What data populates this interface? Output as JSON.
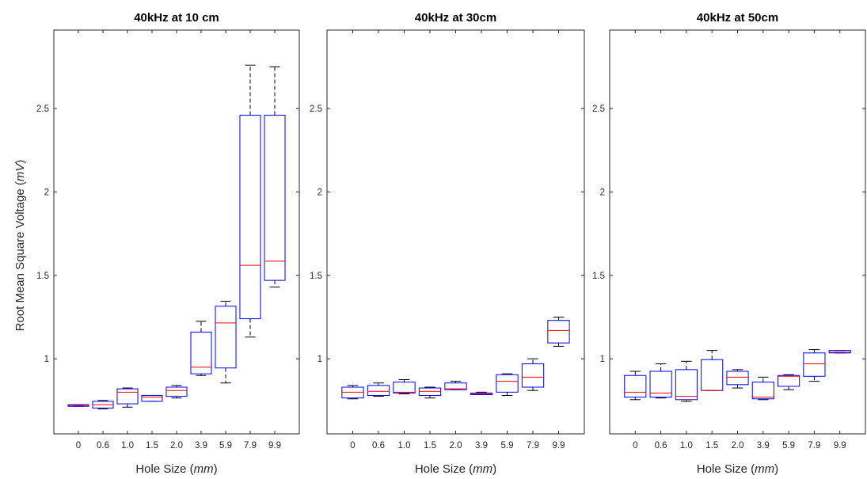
{
  "chart_data": [
    {
      "type": "box",
      "title": "40kHz at 10 cm",
      "xlabel": "Hole Size (mm)",
      "xlabel_prefix": "Hole Size (",
      "xlabel_unit": "mm",
      "xlabel_suffix": ")",
      "ylabel": "Root Mean Square Voltage (mV)",
      "ylabel_prefix": "Root Mean Square Voltage (",
      "ylabel_unit": "mV",
      "ylabel_suffix": ")",
      "ylim": [
        0.55,
        2.97
      ],
      "yticks": [
        "1",
        "1.5",
        "2",
        "2.5"
      ],
      "categories": [
        "0",
        "0.6",
        "1.0",
        "1.5",
        "2.0",
        "3.9",
        "5.9",
        "7.9",
        "9.9"
      ],
      "boxes": [
        {
          "min": 0.715,
          "q1": 0.715,
          "median": 0.72,
          "q3": 0.725,
          "max": 0.725
        },
        {
          "min": 0.7,
          "q1": 0.705,
          "median": 0.725,
          "q3": 0.745,
          "max": 0.75
        },
        {
          "min": 0.71,
          "q1": 0.73,
          "median": 0.8,
          "q3": 0.82,
          "max": 0.825
        },
        {
          "min": 0.745,
          "q1": 0.745,
          "median": 0.77,
          "q3": 0.78,
          "max": 0.78
        },
        {
          "min": 0.765,
          "q1": 0.775,
          "median": 0.81,
          "q3": 0.83,
          "max": 0.84
        },
        {
          "min": 0.9,
          "q1": 0.91,
          "median": 0.95,
          "q3": 1.16,
          "max": 1.225
        },
        {
          "min": 0.855,
          "q1": 0.945,
          "median": 1.215,
          "q3": 1.315,
          "max": 1.345
        },
        {
          "min": 1.13,
          "q1": 1.24,
          "median": 1.56,
          "q3": 2.46,
          "max": 2.76
        },
        {
          "min": 1.43,
          "q1": 1.47,
          "median": 1.585,
          "q3": 2.46,
          "max": 2.75
        }
      ]
    },
    {
      "type": "box",
      "title": "40kHz at 30cm",
      "xlabel": "Hole Size (mm)",
      "xlabel_prefix": "Hole Size (",
      "xlabel_unit": "mm",
      "xlabel_suffix": ")",
      "ylabel": "",
      "ylim": [
        0.55,
        2.97
      ],
      "yticks": [
        "1",
        "1.5",
        "2",
        "2.5"
      ],
      "categories": [
        "0",
        "0.6",
        "1.0",
        "1.5",
        "2.0",
        "3.9",
        "5.9",
        "7.9",
        "9.9"
      ],
      "boxes": [
        {
          "min": 0.76,
          "q1": 0.765,
          "median": 0.8,
          "q3": 0.83,
          "max": 0.84
        },
        {
          "min": 0.775,
          "q1": 0.78,
          "median": 0.805,
          "q3": 0.84,
          "max": 0.855
        },
        {
          "min": 0.79,
          "q1": 0.795,
          "median": 0.8,
          "q3": 0.86,
          "max": 0.875
        },
        {
          "min": 0.765,
          "q1": 0.78,
          "median": 0.805,
          "q3": 0.825,
          "max": 0.83
        },
        {
          "min": 0.815,
          "q1": 0.815,
          "median": 0.82,
          "q3": 0.855,
          "max": 0.865
        },
        {
          "min": 0.785,
          "q1": 0.785,
          "median": 0.79,
          "q3": 0.795,
          "max": 0.8
        },
        {
          "min": 0.78,
          "q1": 0.8,
          "median": 0.865,
          "q3": 0.905,
          "max": 0.91
        },
        {
          "min": 0.81,
          "q1": 0.83,
          "median": 0.89,
          "q3": 0.97,
          "max": 1.0
        },
        {
          "min": 1.075,
          "q1": 1.095,
          "median": 1.17,
          "q3": 1.23,
          "max": 1.25
        }
      ]
    },
    {
      "type": "box",
      "title": "40kHz at 50cm",
      "xlabel": "Hole Size (mm)",
      "xlabel_prefix": "Hole Size (",
      "xlabel_unit": "mm",
      "xlabel_suffix": ")",
      "ylabel": "",
      "ylim": [
        0.55,
        2.97
      ],
      "yticks": [
        "1",
        "1.5",
        "2",
        "2.5"
      ],
      "categories": [
        "0",
        "0.6",
        "1.0",
        "1.5",
        "2.0",
        "3.9",
        "5.9",
        "7.9",
        "9.9"
      ],
      "boxes": [
        {
          "min": 0.755,
          "q1": 0.77,
          "median": 0.8,
          "q3": 0.9,
          "max": 0.925
        },
        {
          "min": 0.765,
          "q1": 0.77,
          "median": 0.795,
          "q3": 0.925,
          "max": 0.97
        },
        {
          "min": 0.745,
          "q1": 0.755,
          "median": 0.775,
          "q3": 0.935,
          "max": 0.985
        },
        {
          "min": 0.81,
          "q1": 0.81,
          "median": 0.81,
          "q3": 0.995,
          "max": 1.05
        },
        {
          "min": 0.825,
          "q1": 0.845,
          "median": 0.89,
          "q3": 0.925,
          "max": 0.935
        },
        {
          "min": 0.755,
          "q1": 0.76,
          "median": 0.77,
          "q3": 0.86,
          "max": 0.89
        },
        {
          "min": 0.815,
          "q1": 0.835,
          "median": 0.895,
          "q3": 0.9,
          "max": 0.905
        },
        {
          "min": 0.865,
          "q1": 0.895,
          "median": 0.97,
          "q3": 1.035,
          "max": 1.055
        },
        {
          "min": 1.035,
          "q1": 1.035,
          "median": 1.04,
          "q3": 1.05,
          "max": 1.05
        }
      ]
    }
  ],
  "colors": {
    "box": "#0000ff",
    "median": "#ff0000",
    "whisker": "#000000",
    "axis": "#262626"
  }
}
